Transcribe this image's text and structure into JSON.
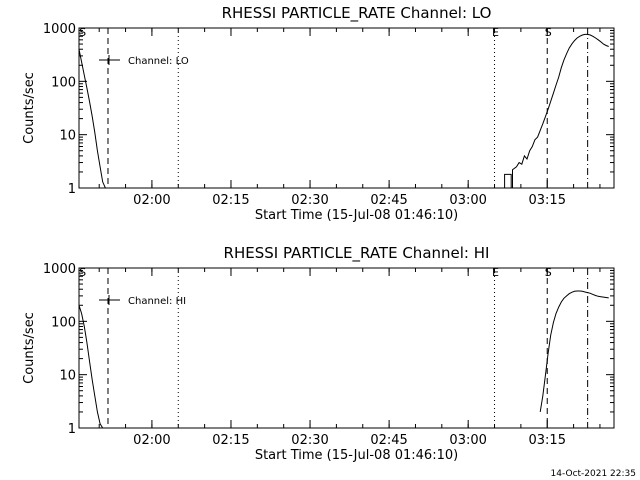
{
  "footer": {
    "timestamp": "14-Oct-2021 22:35"
  },
  "chart_data": [
    {
      "type": "line",
      "title": "RHESSI PARTICLE_RATE Channel: LO",
      "xlabel": "Start Time (15-Jul-08 01:46:10)",
      "ylabel": "Counts/sec",
      "xscale": "linear",
      "yscale": "log",
      "xlim": [
        "01:46:10",
        "03:27:40"
      ],
      "ylim": [
        1,
        1000
      ],
      "xticks": [
        "02:00",
        "02:15",
        "02:30",
        "02:45",
        "03:00",
        "03:15"
      ],
      "yticks": [
        "1",
        "10",
        "100",
        "1000"
      ],
      "legend": {
        "position": "top-left",
        "entries": [
          "Channel: LO"
        ]
      },
      "series": [
        {
          "name": "Channel: LO",
          "segments": [
            {
              "x": [
                "01:46:10",
                "01:46:40",
                "01:47:10",
                "01:47:40",
                "01:48:10",
                "01:48:40",
                "01:49:10",
                "01:49:40",
                "01:50:10",
                "01:50:40",
                "01:51:10"
              ],
              "y": [
                400,
                230,
                130,
                75,
                42,
                22,
                11,
                5,
                2.5,
                1.3,
                1
              ]
            },
            {
              "x": [
                "03:06:40",
                "03:06:55",
                "03:06:55",
                "03:08:10",
                "03:08:10",
                "03:08:25",
                "03:08:25",
                "03:09:10",
                "03:09:40",
                "03:10:10",
                "03:10:40",
                "03:11:10",
                "03:11:40",
                "03:12:10",
                "03:12:40",
                "03:13:10",
                "03:13:40",
                "03:14:10",
                "03:14:40",
                "03:15:10",
                "03:15:40",
                "03:16:10",
                "03:16:40",
                "03:17:10",
                "03:17:40",
                "03:18:10",
                "03:18:40",
                "03:19:10",
                "03:19:40",
                "03:20:10",
                "03:20:40",
                "03:21:10",
                "03:21:40",
                "03:22:10",
                "03:22:40",
                "03:23:10",
                "03:23:40",
                "03:24:10",
                "03:24:40",
                "03:25:10",
                "03:25:40",
                "03:26:10",
                "03:26:40"
              ],
              "y": [
                1,
                1,
                1.8,
                1.8,
                1,
                1,
                2.2,
                2.5,
                3,
                2.8,
                4,
                3.5,
                5,
                6,
                8,
                9,
                12,
                16,
                22,
                30,
                42,
                60,
                85,
                120,
                180,
                250,
                330,
                420,
                500,
                580,
                650,
                700,
                740,
                760,
                760,
                740,
                700,
                650,
                600,
                550,
                500,
                470,
                450
              ]
            }
          ]
        }
      ],
      "markers": [
        {
          "time": "01:46:40",
          "label": "S",
          "line": "none"
        },
        {
          "time": "01:51:40",
          "label": "",
          "line": "dashed"
        },
        {
          "time": "02:05:00",
          "label": "",
          "line": "dotted"
        },
        {
          "time": "03:05:00",
          "label": "E",
          "line": "dotted"
        },
        {
          "time": "03:15:00",
          "label": "S",
          "line": "dashed"
        },
        {
          "time": "03:22:40",
          "label": "",
          "line": "dash-dot"
        }
      ]
    },
    {
      "type": "line",
      "title": "RHESSI PARTICLE_RATE Channel: HI",
      "xlabel": "Start Time (15-Jul-08 01:46:10)",
      "ylabel": "Counts/sec",
      "xscale": "linear",
      "yscale": "log",
      "xlim": [
        "01:46:10",
        "03:27:40"
      ],
      "ylim": [
        1,
        1000
      ],
      "xticks": [
        "02:00",
        "02:15",
        "02:30",
        "02:45",
        "03:00",
        "03:15"
      ],
      "yticks": [
        "1",
        "10",
        "100",
        "1000"
      ],
      "legend": {
        "position": "top-left",
        "entries": [
          "Channel: HI"
        ]
      },
      "series": [
        {
          "name": "Channel: HI",
          "segments": [
            {
              "x": [
                "01:46:10",
                "01:46:40",
                "01:47:10",
                "01:47:40",
                "01:48:10",
                "01:48:40",
                "01:49:10",
                "01:49:40",
                "01:50:10",
                "01:50:40"
              ],
              "y": [
                200,
                140,
                80,
                40,
                18,
                8,
                4,
                2,
                1.2,
                1
              ]
            },
            {
              "x": [
                "03:13:40",
                "03:14:10",
                "03:14:40",
                "03:15:10",
                "03:15:40",
                "03:16:10",
                "03:16:40",
                "03:17:10",
                "03:17:40",
                "03:18:10",
                "03:18:40",
                "03:19:10",
                "03:19:40",
                "03:20:10",
                "03:20:40",
                "03:21:10",
                "03:21:40",
                "03:22:10",
                "03:22:40",
                "03:23:10",
                "03:23:40",
                "03:24:10",
                "03:24:40",
                "03:25:10",
                "03:25:40",
                "03:26:10",
                "03:26:40"
              ],
              "y": [
                2,
                4,
                10,
                25,
                55,
                95,
                140,
                185,
                230,
                270,
                300,
                330,
                350,
                365,
                370,
                370,
                365,
                355,
                345,
                335,
                320,
                305,
                295,
                290,
                285,
                280,
                275
              ]
            }
          ]
        }
      ],
      "markers": [
        {
          "time": "01:46:40",
          "label": "S",
          "line": "none"
        },
        {
          "time": "01:51:40",
          "label": "",
          "line": "dashed"
        },
        {
          "time": "02:05:00",
          "label": "",
          "line": "dotted"
        },
        {
          "time": "03:05:00",
          "label": "E",
          "line": "dotted"
        },
        {
          "time": "03:15:00",
          "label": "S",
          "line": "dashed"
        },
        {
          "time": "03:22:40",
          "label": "",
          "line": "dash-dot"
        }
      ]
    }
  ]
}
